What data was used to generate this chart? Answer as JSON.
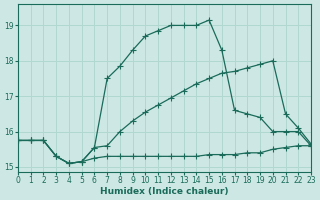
{
  "xlabel": "Humidex (Indice chaleur)",
  "bg_color": "#cde8e4",
  "grid_color": "#b0d8d0",
  "line_color": "#1a6b5a",
  "xlim": [
    0,
    23
  ],
  "ylim": [
    14.85,
    19.6
  ],
  "xticks": [
    0,
    1,
    2,
    3,
    4,
    5,
    6,
    7,
    8,
    9,
    10,
    11,
    12,
    13,
    14,
    15,
    16,
    17,
    18,
    19,
    20,
    21,
    22,
    23
  ],
  "yticks": [
    15,
    16,
    17,
    18,
    19
  ],
  "line1_x": [
    0,
    1,
    2,
    3,
    4,
    5,
    6,
    7,
    8,
    9,
    10,
    11,
    12,
    13,
    14,
    15,
    16,
    17,
    18,
    19,
    20,
    21,
    22,
    23
  ],
  "line1_y": [
    15.75,
    15.75,
    15.75,
    15.3,
    15.1,
    15.15,
    15.55,
    17.5,
    17.85,
    18.3,
    18.7,
    18.85,
    19.0,
    19.0,
    19.0,
    19.15,
    18.3,
    16.6,
    16.5,
    16.4,
    16.0,
    16.0,
    16.0,
    15.6
  ],
  "line2_x": [
    0,
    1,
    2,
    3,
    4,
    5,
    6,
    7,
    8,
    9,
    10,
    11,
    12,
    13,
    14,
    15,
    16,
    17,
    18,
    19,
    20,
    21,
    22,
    23
  ],
  "line2_y": [
    15.75,
    15.75,
    15.75,
    15.3,
    15.1,
    15.15,
    15.55,
    15.6,
    16.0,
    16.3,
    16.55,
    16.75,
    16.95,
    17.15,
    17.35,
    17.5,
    17.65,
    17.7,
    17.8,
    17.9,
    18.0,
    16.5,
    16.1,
    15.65
  ],
  "line3_x": [
    0,
    1,
    2,
    3,
    4,
    5,
    6,
    7,
    8,
    9,
    10,
    11,
    12,
    13,
    14,
    15,
    16,
    17,
    18,
    19,
    20,
    21,
    22,
    23
  ],
  "line3_y": [
    15.75,
    15.75,
    15.75,
    15.3,
    15.1,
    15.15,
    15.25,
    15.3,
    15.3,
    15.3,
    15.3,
    15.3,
    15.3,
    15.3,
    15.3,
    15.35,
    15.35,
    15.35,
    15.4,
    15.4,
    15.5,
    15.55,
    15.6,
    15.6
  ]
}
